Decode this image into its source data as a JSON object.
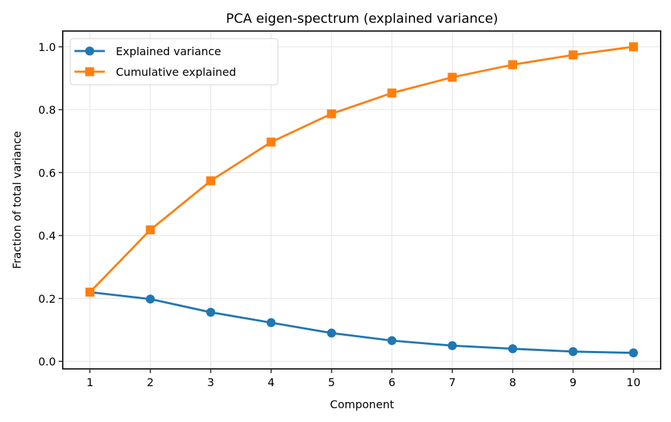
{
  "chart_data": {
    "type": "line",
    "title": "PCA eigen-spectrum (explained variance)",
    "xlabel": "Component",
    "ylabel": "Fraction of total variance",
    "x": [
      1,
      2,
      3,
      4,
      5,
      6,
      7,
      8,
      9,
      10
    ],
    "xticks": [
      "1",
      "2",
      "3",
      "4",
      "5",
      "6",
      "7",
      "8",
      "9",
      "10"
    ],
    "yticks": [
      "0.0",
      "0.2",
      "0.4",
      "0.6",
      "0.8",
      "1.0"
    ],
    "ytick_values": [
      0.0,
      0.2,
      0.4,
      0.6,
      0.8,
      1.0
    ],
    "xlim": [
      0.55,
      10.45
    ],
    "ylim": [
      -0.024,
      1.05
    ],
    "grid": true,
    "legend_position": "top-left",
    "series": [
      {
        "name": "Explained variance",
        "color": "#1f77b4",
        "marker": "circle",
        "values": [
          0.22,
          0.198,
          0.156,
          0.123,
          0.09,
          0.066,
          0.05,
          0.04,
          0.031,
          0.027
        ]
      },
      {
        "name": "Cumulative explained",
        "color": "#ff7f0e",
        "marker": "square",
        "values": [
          0.22,
          0.418,
          0.574,
          0.697,
          0.787,
          0.853,
          0.903,
          0.943,
          0.974,
          1.0
        ]
      }
    ]
  }
}
